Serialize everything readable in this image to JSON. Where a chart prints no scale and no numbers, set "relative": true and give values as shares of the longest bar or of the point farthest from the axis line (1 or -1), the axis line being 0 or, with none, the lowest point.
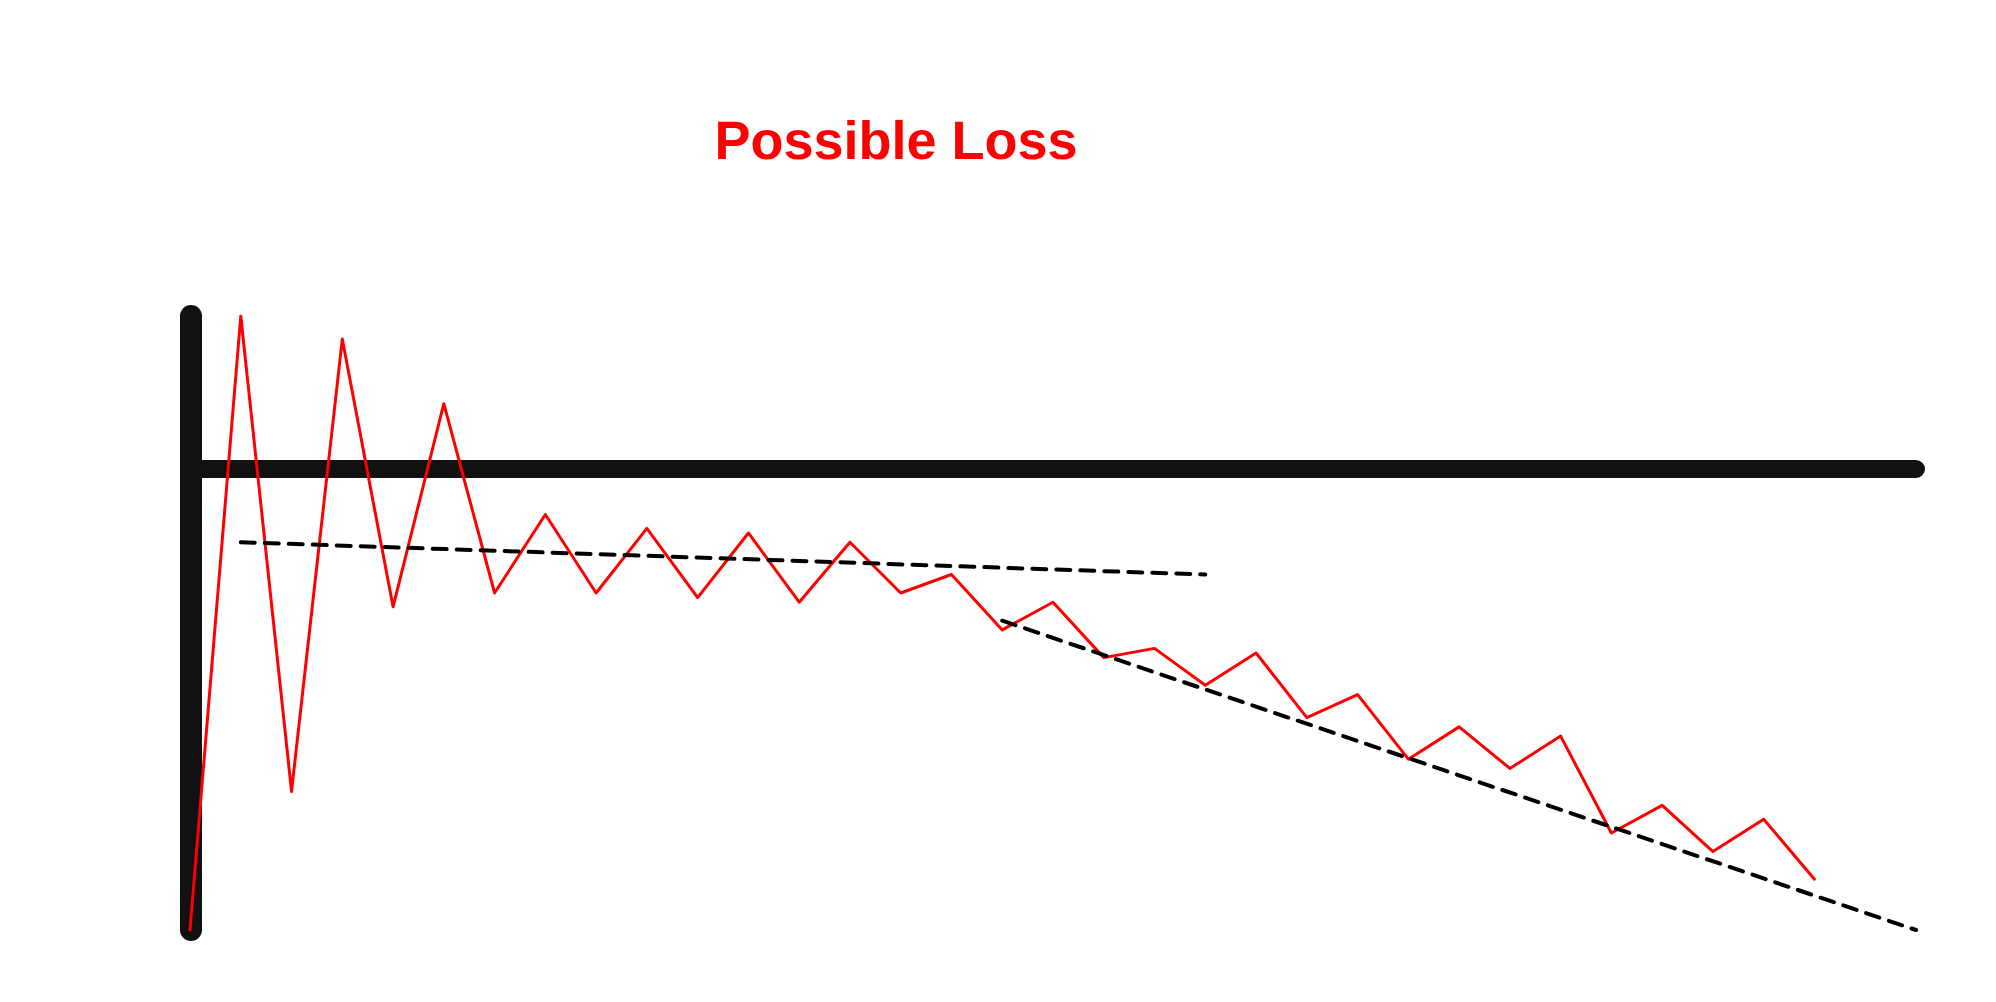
{
  "chart_data": {
    "type": "line",
    "title": "Possible Loss",
    "relative": true,
    "grid": false,
    "marker": "none",
    "categories": [
      null,
      null,
      null,
      null,
      null,
      null,
      null,
      null,
      null,
      null,
      null,
      null,
      null,
      null,
      null,
      null,
      null,
      null,
      null,
      null,
      null,
      null,
      null,
      null,
      null,
      null,
      null,
      null,
      null,
      null,
      null,
      null,
      null,
      null,
      null
    ],
    "series": [
      {
        "color": "#ff0000",
        "line_style": "solid",
        "values": [
          -1.0,
          0.33,
          -0.7,
          0.28,
          -0.3,
          0.14,
          -0.27,
          -0.1,
          -0.27,
          -0.13,
          -0.28,
          -0.14,
          -0.29,
          -0.16,
          -0.27,
          -0.23,
          -0.35,
          -0.29,
          -0.41,
          -0.39,
          -0.47,
          -0.4,
          -0.54,
          -0.49,
          -0.63,
          -0.56,
          -0.65,
          -0.58,
          -0.79,
          -0.73,
          -0.83,
          -0.76,
          -0.89,
          null,
          null
        ]
      },
      {
        "type": "line",
        "color": "#000000",
        "line_style": "dashed",
        "values": [
          null,
          -0.16,
          null,
          null,
          null,
          null,
          null,
          null,
          null,
          null,
          null,
          null,
          null,
          null,
          null,
          null,
          null,
          null,
          null,
          null,
          -0.23,
          null,
          null,
          null,
          null,
          null,
          null,
          null,
          null,
          null,
          null,
          null,
          null,
          null,
          null
        ]
      },
      {
        "type": "line",
        "color": "#000000",
        "line_style": "dashed",
        "values": [
          null,
          null,
          null,
          null,
          null,
          null,
          null,
          null,
          null,
          null,
          null,
          null,
          null,
          null,
          null,
          null,
          -0.33,
          null,
          null,
          null,
          null,
          null,
          null,
          null,
          null,
          null,
          null,
          null,
          null,
          null,
          null,
          null,
          null,
          null,
          -1.0
        ]
      }
    ]
  }
}
